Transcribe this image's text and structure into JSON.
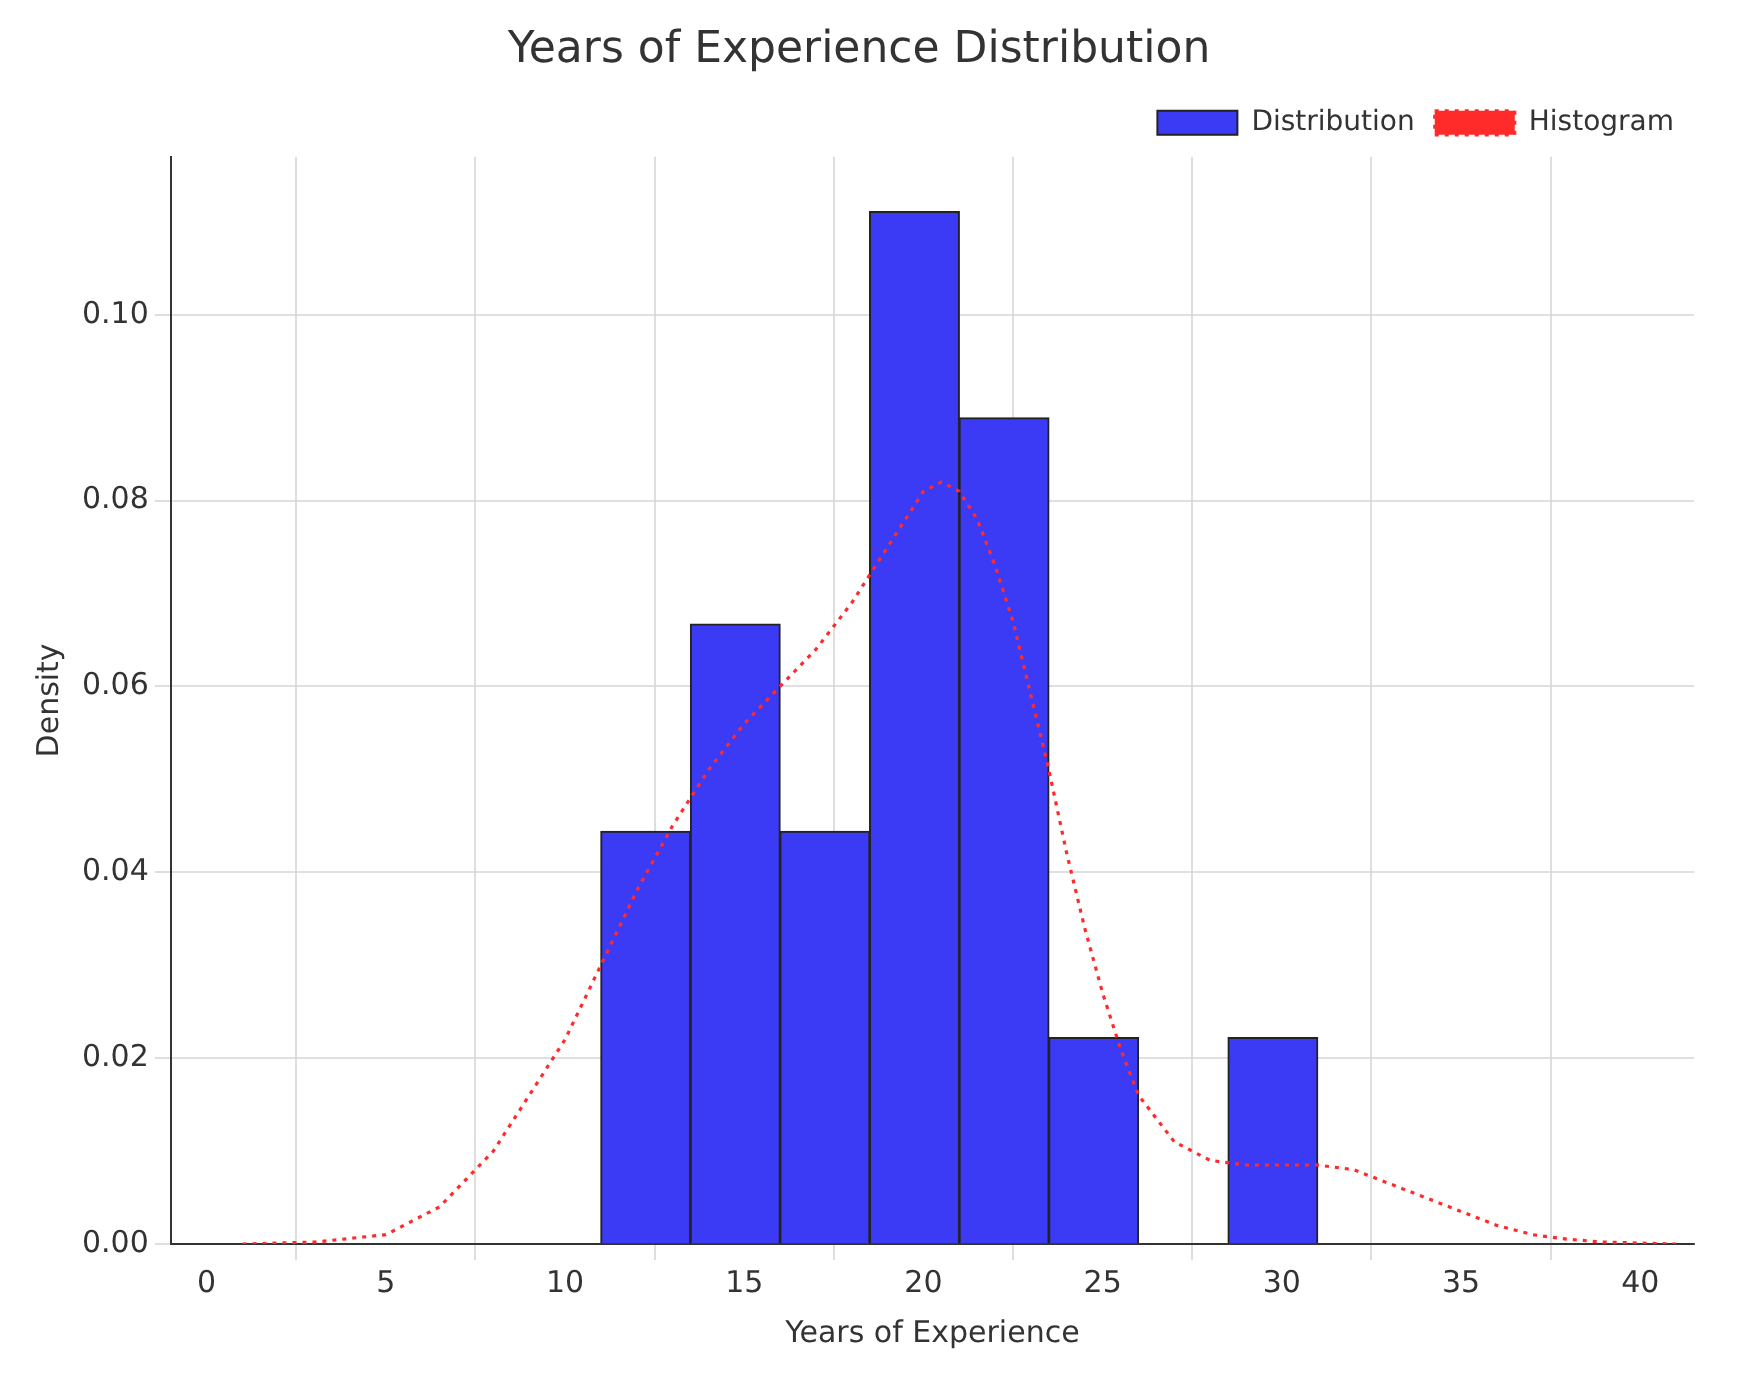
{
  "chart_data": {
    "type": "histogram",
    "title": "Years of Experience Distribution",
    "xlabel": "Years of Experience",
    "ylabel": "Density",
    "bins": [
      11,
      13.5,
      16,
      18.5,
      21,
      23.5,
      26,
      28.5,
      31
    ],
    "series": [
      {
        "name": "Distribution",
        "color": "#3b3bf5",
        "values": [
          0.0444,
          0.0667,
          0.0444,
          0.1111,
          0.0889,
          0.0222,
          0,
          0.0222
        ]
      },
      {
        "type": "line",
        "name": "Histogram",
        "color": "#ff2b2b",
        "line_style": "dotted",
        "marker": "none",
        "x": [
          1,
          3,
          5,
          6.5,
          8,
          9,
          10,
          11,
          12,
          13,
          14,
          15,
          16,
          17,
          18,
          19,
          19.5,
          20,
          20.5,
          21,
          21.5,
          22,
          22.5,
          23,
          23.5,
          24,
          24.5,
          25,
          25.5,
          26,
          27,
          28,
          29,
          30,
          31,
          32,
          33,
          34,
          35,
          36,
          37,
          38,
          39,
          40,
          41
        ],
        "values": [
          0,
          0.0002,
          0.001,
          0.004,
          0.01,
          0.016,
          0.022,
          0.03,
          0.038,
          0.045,
          0.051,
          0.056,
          0.06,
          0.064,
          0.069,
          0.075,
          0.078,
          0.081,
          0.082,
          0.081,
          0.078,
          0.073,
          0.067,
          0.059,
          0.051,
          0.042,
          0.034,
          0.027,
          0.021,
          0.016,
          0.011,
          0.009,
          0.0085,
          0.0085,
          0.0085,
          0.008,
          0.0065,
          0.005,
          0.0035,
          0.002,
          0.001,
          0.0005,
          0.0002,
          0.0001,
          0
        ]
      }
    ],
    "xlim": [
      -1,
      41.5
    ],
    "ylim": [
      0,
      0.117
    ],
    "xticks": [
      0,
      5,
      10,
      15,
      20,
      25,
      30,
      35,
      40
    ],
    "yticks": [
      {
        "value": 0,
        "label": "0.00"
      },
      {
        "value": 0.02,
        "label": "0.02"
      },
      {
        "value": 0.04,
        "label": "0.04"
      },
      {
        "value": 0.06,
        "label": "0.06"
      },
      {
        "value": 0.08,
        "label": "0.08"
      },
      {
        "value": 0.1,
        "label": "0.10"
      }
    ],
    "grid": true,
    "legend": "top right"
  }
}
